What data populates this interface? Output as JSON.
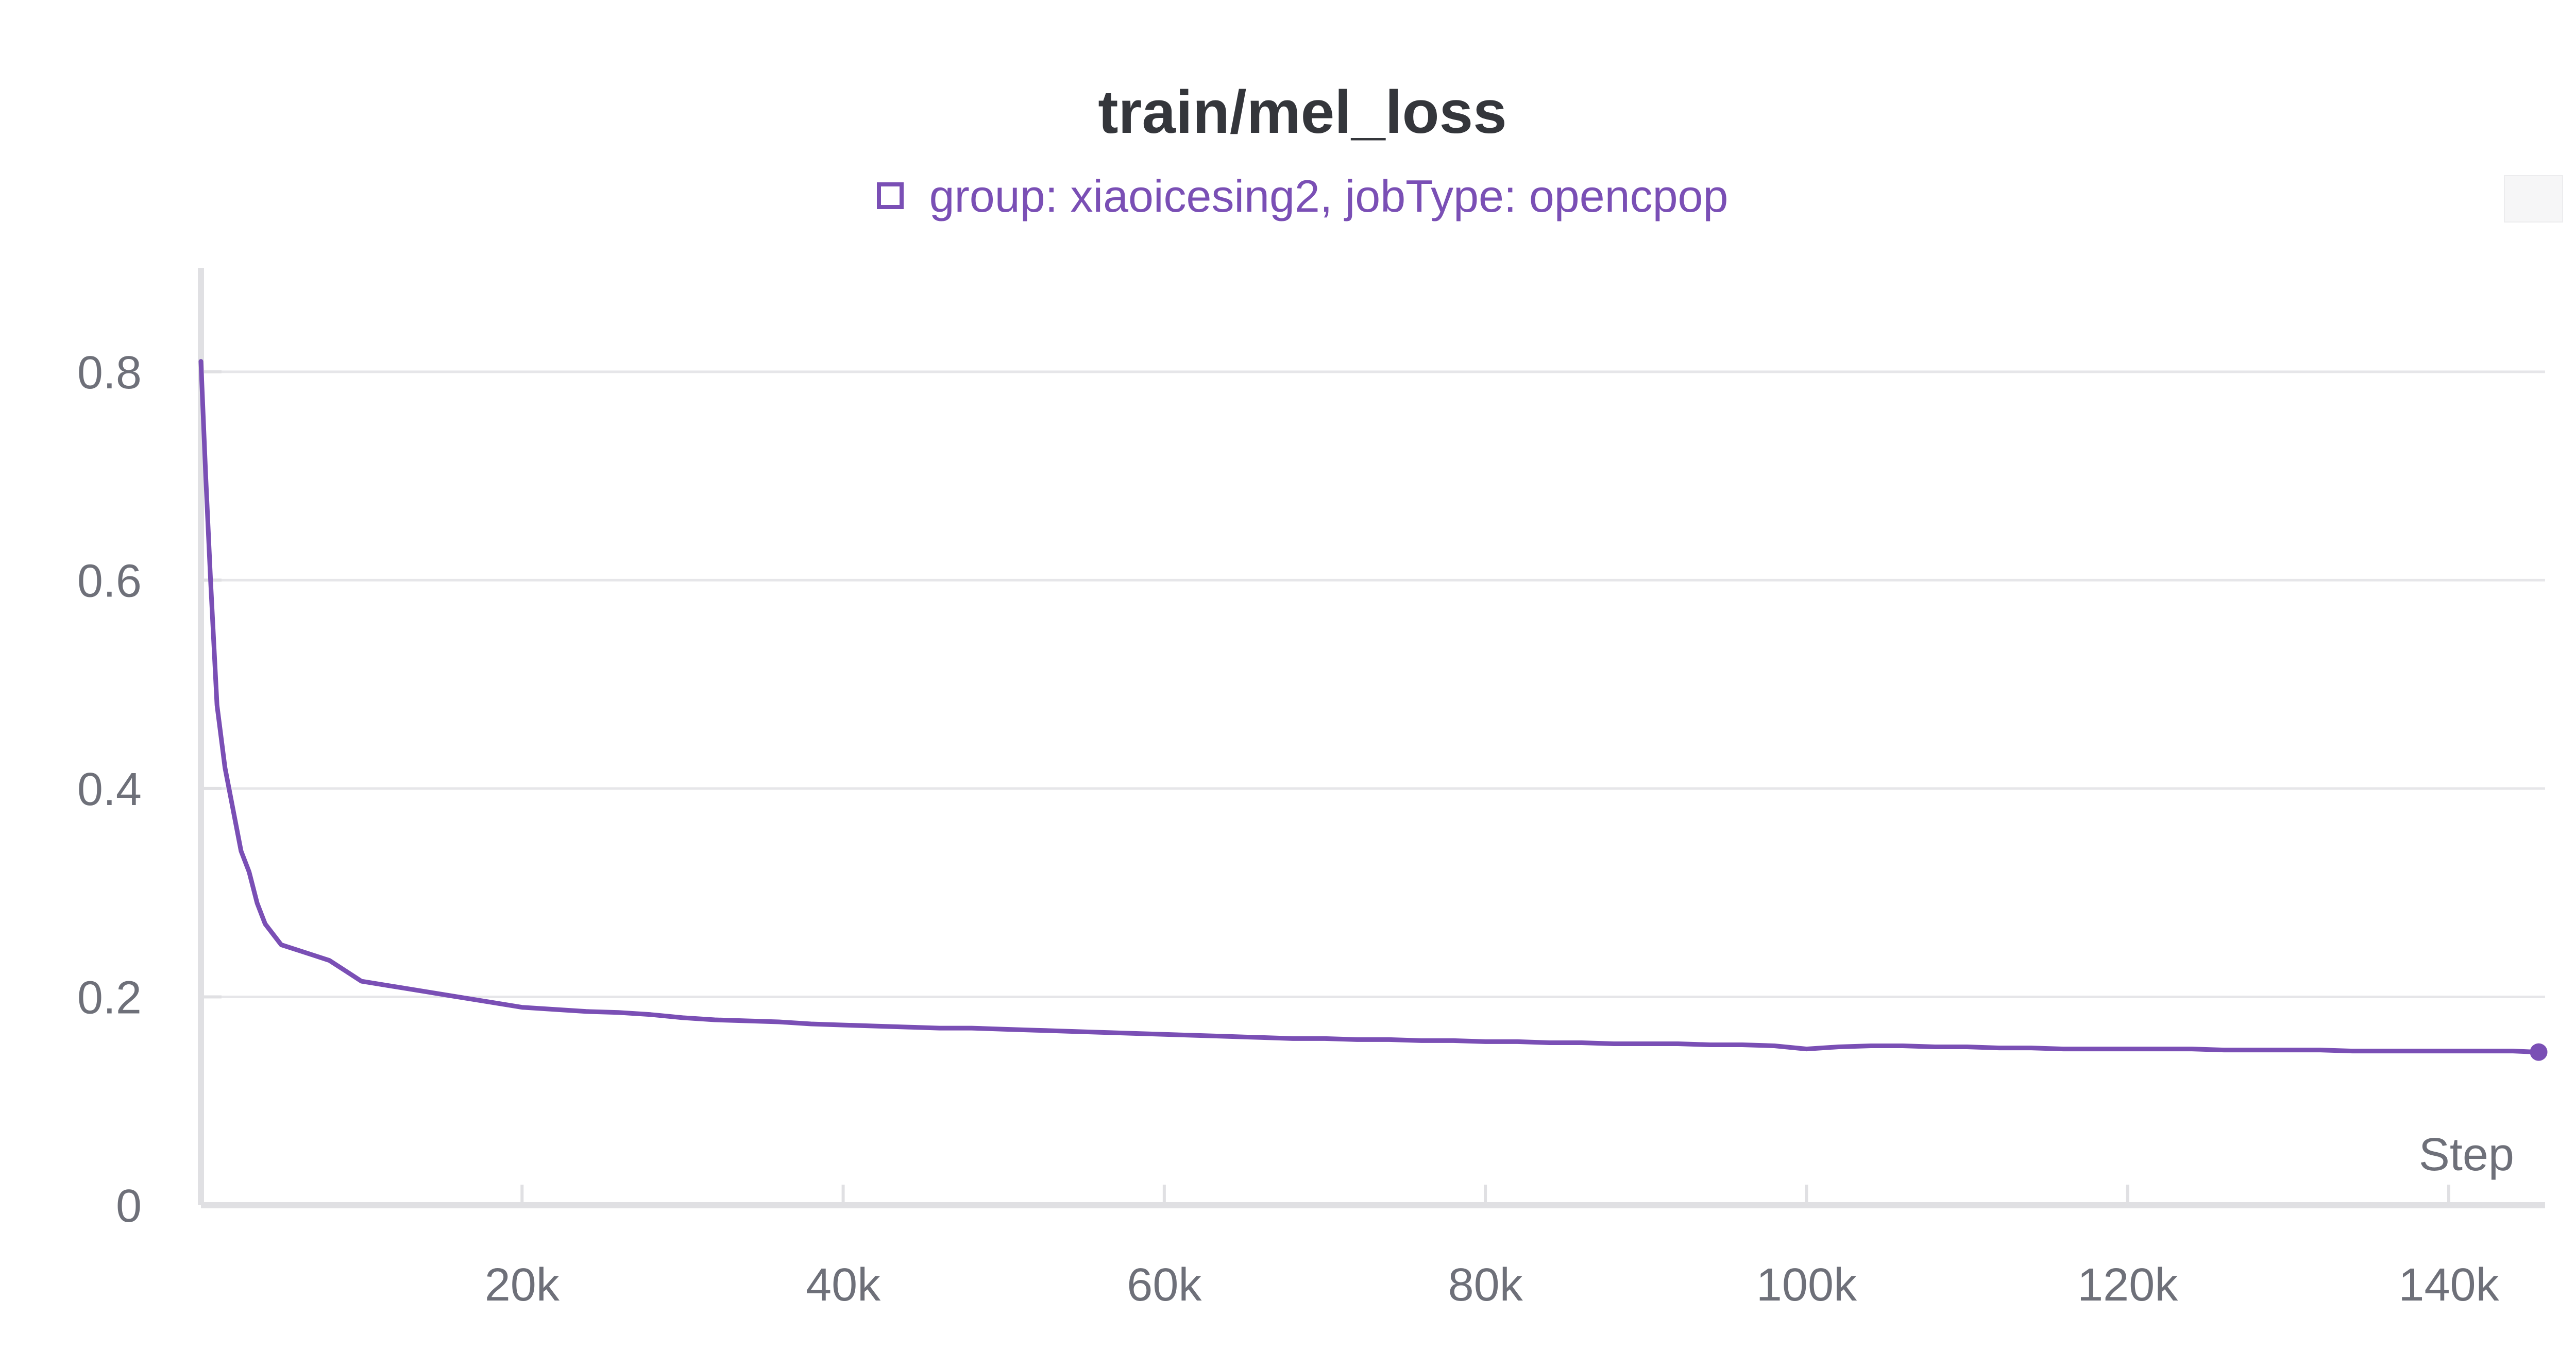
{
  "chart_data": {
    "type": "line",
    "title": "train/mel_loss",
    "xlabel": "Step",
    "ylabel": "",
    "xlim": [
      0,
      146000
    ],
    "ylim": [
      0,
      0.88
    ],
    "x_ticks": [
      20000,
      40000,
      60000,
      80000,
      100000,
      120000,
      140000
    ],
    "x_tick_labels": [
      "20k",
      "40k",
      "60k",
      "80k",
      "100k",
      "120k",
      "140k"
    ],
    "y_ticks": [
      0,
      0.2,
      0.4,
      0.6,
      0.8
    ],
    "y_tick_labels": [
      "0",
      "0.2",
      "0.4",
      "0.6",
      "0.8"
    ],
    "grid": true,
    "legend_position": "top-center",
    "series": [
      {
        "name": "group: xiaoicesing2, jobType: opencpop",
        "color": "#7a4fb5",
        "x": [
          0,
          300,
          600,
          1000,
          1500,
          2000,
          2500,
          3000,
          3500,
          4000,
          5000,
          6000,
          7000,
          8000,
          9000,
          10000,
          12000,
          14000,
          16000,
          18000,
          20000,
          22000,
          24000,
          26000,
          28000,
          30000,
          32000,
          34000,
          36000,
          38000,
          40000,
          42000,
          44000,
          46000,
          48000,
          50000,
          52000,
          54000,
          56000,
          58000,
          60000,
          62000,
          64000,
          66000,
          68000,
          70000,
          72000,
          74000,
          76000,
          78000,
          80000,
          82000,
          84000,
          86000,
          88000,
          90000,
          92000,
          94000,
          96000,
          98000,
          100000,
          102000,
          104000,
          106000,
          108000,
          110000,
          112000,
          114000,
          116000,
          118000,
          120000,
          122000,
          124000,
          126000,
          128000,
          130000,
          132000,
          134000,
          136000,
          138000,
          140000,
          142000,
          144000,
          145600
        ],
        "values": [
          0.81,
          0.7,
          0.6,
          0.48,
          0.42,
          0.38,
          0.34,
          0.32,
          0.29,
          0.27,
          0.25,
          0.245,
          0.24,
          0.235,
          0.225,
          0.215,
          0.21,
          0.205,
          0.2,
          0.195,
          0.19,
          0.188,
          0.186,
          0.185,
          0.183,
          0.18,
          0.178,
          0.177,
          0.176,
          0.174,
          0.173,
          0.172,
          0.171,
          0.17,
          0.17,
          0.169,
          0.168,
          0.167,
          0.166,
          0.165,
          0.164,
          0.163,
          0.162,
          0.161,
          0.16,
          0.16,
          0.159,
          0.159,
          0.158,
          0.158,
          0.157,
          0.157,
          0.156,
          0.156,
          0.155,
          0.155,
          0.155,
          0.154,
          0.154,
          0.153,
          0.15,
          0.152,
          0.153,
          0.153,
          0.152,
          0.152,
          0.151,
          0.151,
          0.15,
          0.15,
          0.15,
          0.15,
          0.15,
          0.149,
          0.149,
          0.149,
          0.149,
          0.148,
          0.148,
          0.148,
          0.148,
          0.148,
          0.148,
          0.147
        ]
      }
    ]
  }
}
